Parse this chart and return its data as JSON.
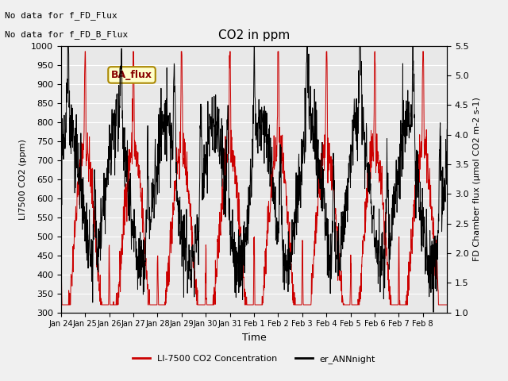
{
  "title": "CO2 in ppm",
  "xlabel": "Time",
  "ylabel_left": "LI7500 CO2 (ppm)",
  "ylabel_right": "FD Chamber flux (μmol CO2 m-2 s-1)",
  "legend1": "LI-7500 CO2 Concentration",
  "legend2": "er_ANNnight",
  "annotation1": "No data for f_FD_Flux",
  "annotation2": "No data for f_FD_B_Flux",
  "ba_flux_label": "BA_flux",
  "ylim_left": [
    300,
    1000
  ],
  "ylim_right": [
    1.0,
    5.5
  ],
  "xtick_labels": [
    "Jan 24",
    "Jan 25",
    "Jan 26",
    "Jan 27",
    "Jan 28",
    "Jan 29",
    "Jan 30",
    "Jan 31",
    "Feb 1",
    "Feb 2",
    "Feb 3",
    "Feb 4",
    "Feb 5",
    "Feb 6",
    "Feb 7",
    "Feb 8"
  ],
  "color_red": "#cc0000",
  "color_black": "#000000",
  "fig_bg": "#f0f0f0",
  "plot_bg": "#e8e8e8",
  "grid_color": "#ffffff",
  "ba_flux_bg": "#ffffcc",
  "ba_flux_border": "#aa8800",
  "ba_flux_text": "#880000"
}
